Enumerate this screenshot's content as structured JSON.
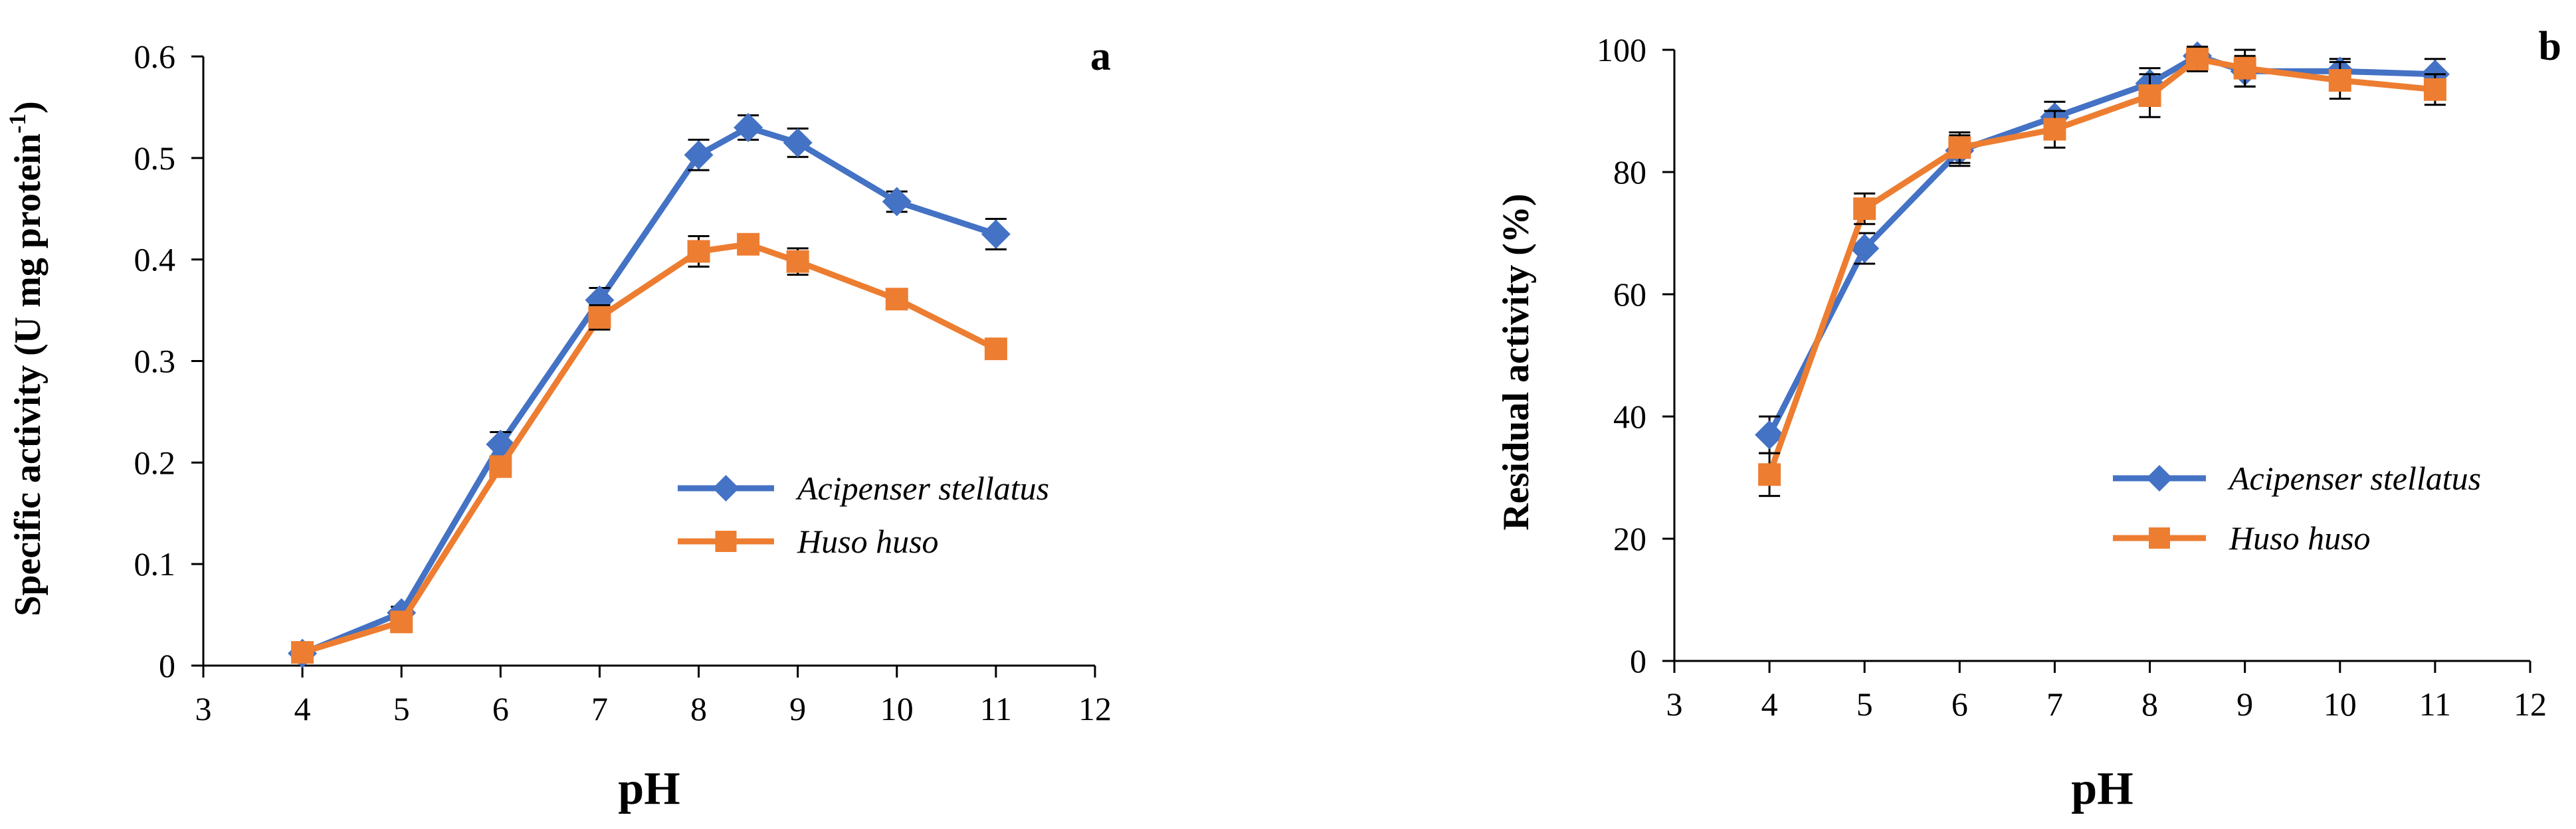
{
  "chart_data": [
    {
      "type": "line",
      "panel_label": "a",
      "title": "",
      "xlabel": "pH",
      "ylabel_main": "Specific activity (U mg protein",
      "ylabel_sup": "-1",
      "ylabel_end": ")",
      "xlim": [
        3,
        12
      ],
      "ylim": [
        0,
        0.6
      ],
      "xticks": [
        3,
        4,
        5,
        6,
        7,
        8,
        9,
        10,
        11,
        12
      ],
      "yticks": [
        0,
        0.1,
        0.2,
        0.3,
        0.4,
        0.5,
        0.6
      ],
      "ytick_labels": [
        "0",
        "0.1",
        "0.2",
        "0.3",
        "0.4",
        "0.5",
        "0.6"
      ],
      "legend_position": "right-middle",
      "series": [
        {
          "name": "Acipenser stellatus",
          "color": "#4472C4",
          "marker": "diamond",
          "x": [
            4,
            5,
            6,
            7,
            8,
            8.5,
            9,
            10,
            11
          ],
          "values": [
            0.012,
            0.052,
            0.218,
            0.36,
            0.503,
            0.53,
            0.515,
            0.457,
            0.425
          ],
          "errors": [
            0.004,
            0.006,
            0.012,
            0.012,
            0.015,
            0.012,
            0.014,
            0.01,
            0.015
          ]
        },
        {
          "name": "Huso huso",
          "color": "#ED7D31",
          "marker": "square",
          "x": [
            4,
            5,
            6,
            7,
            8,
            8.5,
            9,
            10,
            11
          ],
          "values": [
            0.013,
            0.043,
            0.196,
            0.343,
            0.408,
            0.415,
            0.398,
            0.361,
            0.312
          ],
          "errors": [
            0.004,
            0.006,
            0.01,
            0.012,
            0.015,
            0.01,
            0.013,
            0.01,
            0.006
          ]
        }
      ]
    },
    {
      "type": "line",
      "panel_label": "b",
      "title": "",
      "xlabel": "pH",
      "ylabel_main": "Residual activity (%)",
      "xlim": [
        3,
        12
      ],
      "ylim": [
        0,
        100
      ],
      "xticks": [
        3,
        4,
        5,
        6,
        7,
        8,
        9,
        10,
        11,
        12
      ],
      "yticks": [
        0,
        20,
        40,
        60,
        80,
        100
      ],
      "ytick_labels": [
        "0",
        "20",
        "40",
        "60",
        "80",
        "100"
      ],
      "legend_position": "right-lower",
      "series": [
        {
          "name": "Acipenser stellatus",
          "color": "#4472C4",
          "marker": "diamond",
          "x": [
            4,
            5,
            6,
            7,
            8,
            8.5,
            9,
            10,
            11
          ],
          "values": [
            37,
            67.5,
            83.5,
            89,
            94.5,
            99,
            96.5,
            96.5,
            96
          ],
          "errors": [
            3,
            2.5,
            2.5,
            2.5,
            2.5,
            1.5,
            2.5,
            2,
            2.5
          ]
        },
        {
          "name": "Huso huso",
          "color": "#ED7D31",
          "marker": "square",
          "x": [
            4,
            5,
            6,
            7,
            8,
            8.5,
            9,
            10,
            11
          ],
          "values": [
            30.5,
            74,
            84,
            87,
            92.5,
            98.5,
            97,
            95,
            93.5
          ],
          "errors": [
            3.5,
            2.5,
            2.5,
            3,
            3.5,
            2,
            3,
            3,
            2.5
          ]
        }
      ]
    }
  ]
}
